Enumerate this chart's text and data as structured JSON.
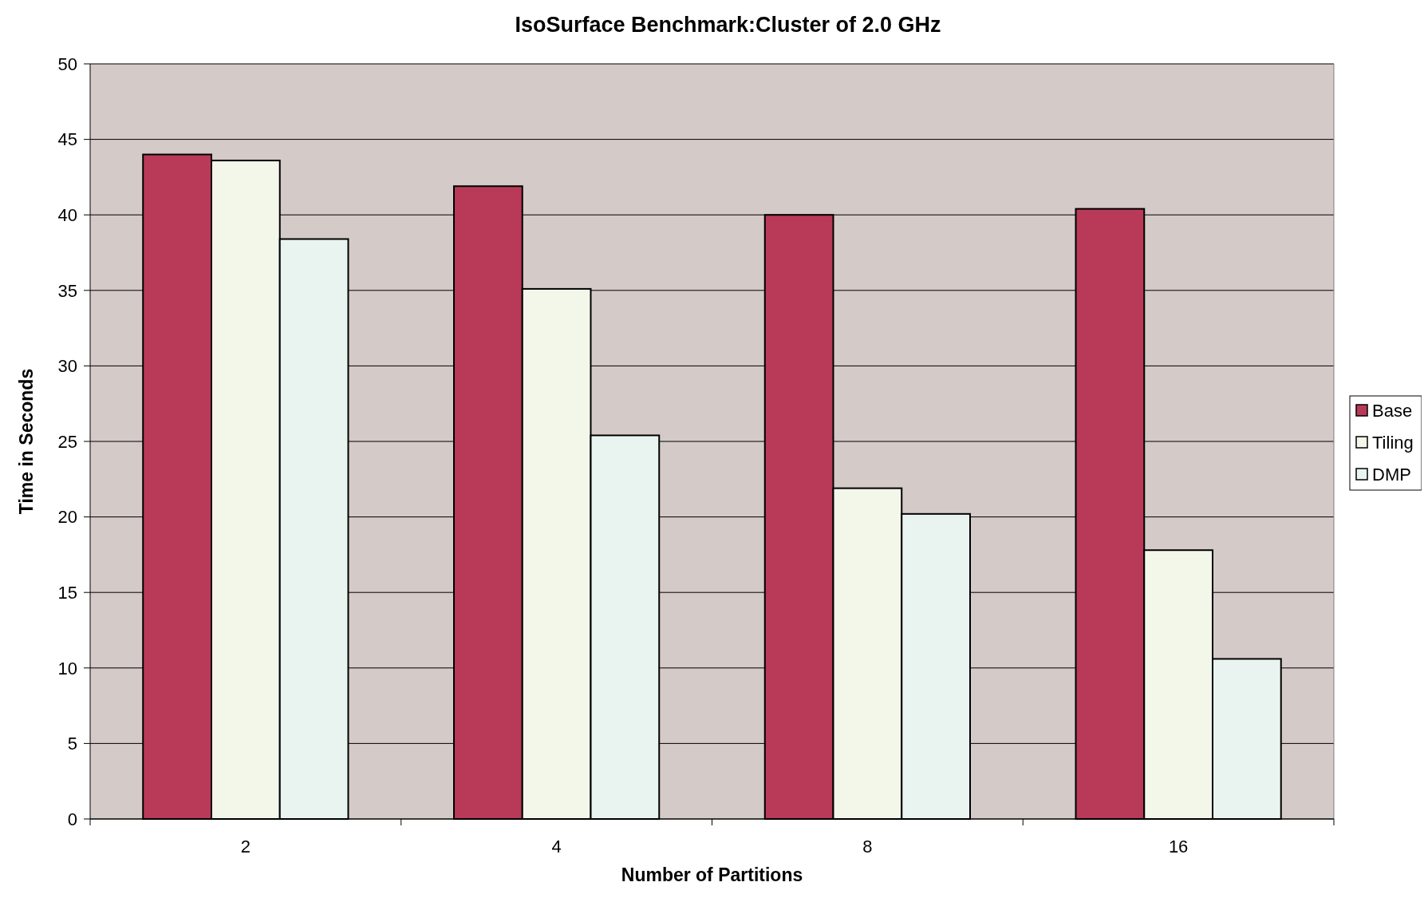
{
  "chart_data": {
    "type": "bar",
    "title": "IsoSurface Benchmark:Cluster of 2.0 GHz",
    "xlabel": "Number of Partitions",
    "ylabel": "Time in Seconds",
    "categories": [
      "2",
      "4",
      "8",
      "16"
    ],
    "series": [
      {
        "name": "Base",
        "color": "#b83a58",
        "values": [
          44,
          41.9,
          40.0,
          40.4
        ]
      },
      {
        "name": "Tiling",
        "color": "#f3f7ea",
        "values": [
          43.6,
          35.1,
          21.9,
          17.8
        ]
      },
      {
        "name": "DMP",
        "color": "#e9f4f0",
        "values": [
          38.4,
          25.4,
          20.2,
          10.6
        ]
      }
    ],
    "ylim": [
      0,
      50
    ],
    "yticks": [
      0,
      5,
      10,
      15,
      20,
      25,
      30,
      35,
      40,
      45,
      50
    ],
    "grid": "y",
    "legend": "right"
  }
}
